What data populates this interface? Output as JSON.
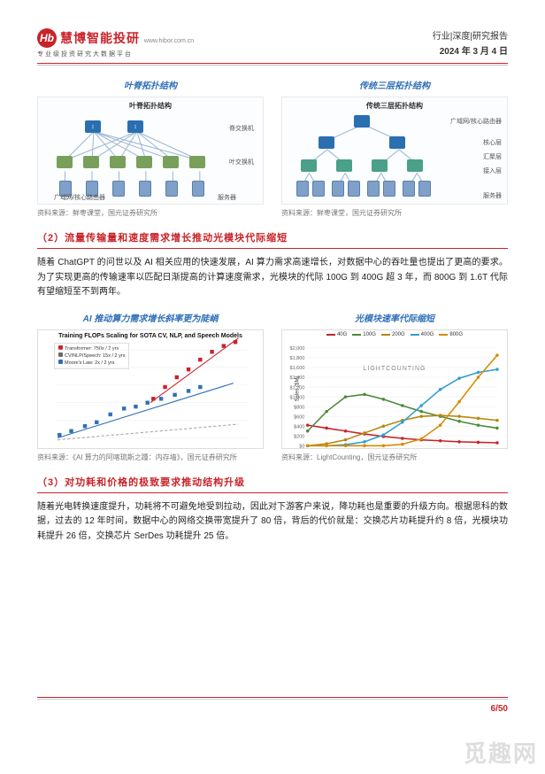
{
  "header": {
    "logo_text": "慧博智能投研",
    "logo_url": "www.hibor.com.cn",
    "logo_sub": "专业级投资研究大数据平台",
    "logo_badge": "Hb",
    "category": "行业|深度|研究报告",
    "date": "2024 年 3 月 4 日"
  },
  "fig1": {
    "left_title": "叶脊拓扑结构",
    "right_title": "传统三层拓扑结构",
    "left_inner": "叶脊拓扑结构",
    "right_inner": "传统三层拓扑结构",
    "left_lbl_spine": "脊交换机",
    "left_lbl_leaf": "叶交换机",
    "left_lbl_router": "广域网/核心路由器",
    "left_lbl_server": "服务器",
    "right_lbl_core": "广域网/核心路由器",
    "right_lbl_agg": "核心层",
    "right_lbl_agg2": "汇聚层",
    "right_lbl_access": "接入层",
    "right_lbl_server": "服务器",
    "caption_l": "资料来源：鲜枣课堂，国元证券研究所",
    "caption_r": "资料来源：鲜枣课堂，国元证券研究所",
    "colors": {
      "spine": "#2a6fb0",
      "leaf": "#78a05a",
      "agg": "#2a6fb0",
      "access": "#4aa088",
      "server": "#8aa6c2"
    }
  },
  "sec2": {
    "head": "（2）流量传输量和速度需求增长推动光模块代际缩短",
    "para": "随着 ChatGPT 的问世以及 AI 相关应用的快速发展，AI 算力需求高速增长，对数据中心的吞吐量也提出了更高的要求。为了实现更高的传输速率以匹配日渐提高的计算速度需求，光模块的代际 100G 到 400G 超 3 年，而 800G 到 1.6T 代际有望缩短至不到两年。"
  },
  "fig2": {
    "left_title": "AI 推动算力需求增长斜率更为陡峭",
    "right_title": "光模块速率代际缩短",
    "left_inner": "Training FLOPs Scaling for SOTA CV, NLP, and Speech Models",
    "left_cap": "资料来源：《AI 算力的阿喀琉斯之踵：内存墙》，国元证券研究所",
    "right_cap": "资料来源：LightCounting，国元证券研究所",
    "scatter": {
      "x_years": [
        "2012",
        "2013",
        "2014",
        "2015",
        "2016",
        "2017",
        "2018",
        "2019",
        "2020",
        "2021"
      ],
      "y_range_log": [
        0.01,
        10000
      ],
      "series": [
        {
          "name": "Transformer: 750x / 2 yrs",
          "color": "#c8232a"
        },
        {
          "name": "CV/NLP/Speech: 15x / 2 yrs",
          "color": "#6a6a6a"
        },
        {
          "name": "Moore's Law: 2x / 2 yrs",
          "color": "#2f6fb7"
        }
      ],
      "points_blue": [
        [
          22,
          107
        ],
        [
          34,
          103
        ],
        [
          48,
          98
        ],
        [
          60,
          94
        ],
        [
          74,
          86
        ],
        [
          88,
          80
        ],
        [
          100,
          78
        ],
        [
          112,
          74
        ],
        [
          126,
          70
        ],
        [
          140,
          66
        ],
        [
          154,
          62
        ],
        [
          166,
          58
        ]
      ],
      "points_red": [
        [
          118,
          70
        ],
        [
          130,
          58
        ],
        [
          142,
          48
        ],
        [
          154,
          40
        ],
        [
          166,
          30
        ],
        [
          178,
          22
        ],
        [
          190,
          16
        ],
        [
          202,
          12
        ]
      ],
      "trend_blue": [
        [
          20,
          110
        ],
        [
          200,
          54
        ]
      ],
      "trend_red": [
        [
          115,
          74
        ],
        [
          205,
          8
        ]
      ],
      "moore": [
        [
          20,
          112
        ],
        [
          205,
          96
        ]
      ]
    },
    "lines": {
      "ylab": "Sales ($M)",
      "ymax": 2000,
      "ystep": 200,
      "x_years": [
        "2016",
        "2017",
        "2018",
        "2019",
        "2020",
        "2021",
        "2022",
        "2023",
        "2024",
        "2025",
        "2026"
      ],
      "legend": [
        {
          "name": "40G",
          "color": "#c8232a"
        },
        {
          "name": "100G",
          "color": "#4a8a3a"
        },
        {
          "name": "200G",
          "color": "#b8860b"
        },
        {
          "name": "400G",
          "color": "#2f9fd0"
        },
        {
          "name": "800G",
          "color": "#d68b00"
        }
      ],
      "series": {
        "40G": [
          420,
          360,
          300,
          240,
          190,
          150,
          120,
          100,
          80,
          70,
          60
        ],
        "100G": [
          300,
          700,
          1000,
          1050,
          950,
          820,
          700,
          600,
          500,
          420,
          360
        ],
        "200G": [
          0,
          40,
          120,
          260,
          400,
          520,
          600,
          620,
          600,
          560,
          520
        ],
        "400G": [
          0,
          0,
          20,
          80,
          220,
          480,
          820,
          1150,
          1380,
          1500,
          1560
        ],
        "800G": [
          0,
          0,
          0,
          0,
          0,
          30,
          140,
          420,
          900,
          1400,
          1850
        ]
      },
      "watermark": "LIGHTCOUNTING"
    }
  },
  "sec3": {
    "head": "（3）对功耗和价格的极致要求推动结构升级",
    "para": "随着光电转换速度提升，功耗将不可避免地受到拉动，因此对下游客户来说，降功耗也是重要的升级方向。根据思科的数据，过去的 12 年时间，数据中心的网络交换带宽提升了 80 倍，背后的代价就是：交换芯片功耗提升约 8 倍，光模块功耗提升 26 倍，交换芯片 SerDes 功耗提升 25 倍。"
  },
  "footer": {
    "page": "6",
    "total": "50",
    "wm": "觅趣网"
  }
}
